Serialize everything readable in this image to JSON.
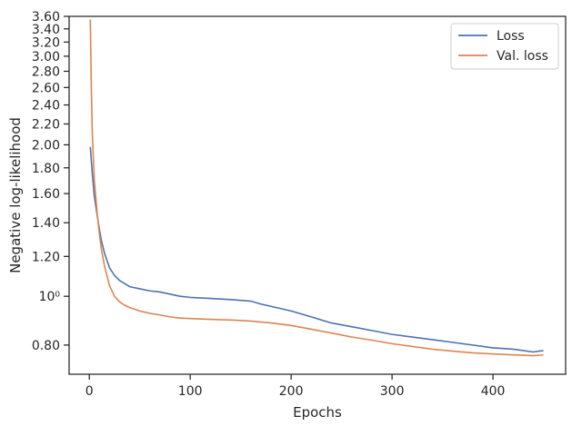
{
  "chart_data": {
    "type": "line",
    "xlabel": "Epochs",
    "ylabel": "Negative log-likelihood",
    "xlim": [
      -20,
      472
    ],
    "ylim": [
      0.7,
      3.6
    ],
    "y_scale": "log",
    "grid": false,
    "legend_placement": "top-right",
    "x_ticks": [
      0,
      100,
      200,
      300,
      400
    ],
    "x_tick_labels": [
      "0",
      "100",
      "200",
      "300",
      "400"
    ],
    "y_ticks": [
      0.8,
      1.0,
      1.2,
      1.4,
      1.6,
      1.8,
      2.0,
      2.2,
      2.4,
      2.6,
      2.8,
      3.0,
      3.2,
      3.4,
      3.6
    ],
    "y_tick_labels": [
      "0.80",
      "10⁰",
      "1.20",
      "1.40",
      "1.60",
      "1.80",
      "2.00",
      "2.20",
      "2.40",
      "2.60",
      "2.80",
      "3.00",
      "3.20",
      "3.40",
      "3.60"
    ],
    "series": [
      {
        "name": "Loss",
        "color": "#4c72b0",
        "x": [
          1,
          3,
          5,
          8,
          10,
          12,
          15,
          18,
          20,
          25,
          30,
          35,
          40,
          50,
          60,
          70,
          80,
          90,
          100,
          120,
          140,
          160,
          170,
          180,
          200,
          220,
          240,
          260,
          280,
          300,
          320,
          340,
          360,
          380,
          400,
          420,
          440,
          450
        ],
        "y": [
          1.98,
          1.75,
          1.58,
          1.44,
          1.36,
          1.29,
          1.22,
          1.17,
          1.14,
          1.1,
          1.075,
          1.06,
          1.045,
          1.035,
          1.025,
          1.02,
          1.01,
          1.0,
          0.995,
          0.99,
          0.985,
          0.978,
          0.965,
          0.955,
          0.935,
          0.91,
          0.885,
          0.87,
          0.855,
          0.84,
          0.83,
          0.82,
          0.81,
          0.8,
          0.79,
          0.785,
          0.775,
          0.78
        ]
      },
      {
        "name": "Val. loss",
        "color": "#dd8452",
        "x": [
          1,
          2,
          3,
          5,
          8,
          10,
          12,
          15,
          18,
          20,
          25,
          30,
          35,
          40,
          50,
          60,
          70,
          80,
          90,
          100,
          120,
          140,
          160,
          180,
          200,
          220,
          240,
          260,
          280,
          300,
          320,
          340,
          360,
          380,
          400,
          420,
          440,
          450
        ],
        "y": [
          3.55,
          2.6,
          2.1,
          1.7,
          1.45,
          1.33,
          1.24,
          1.15,
          1.09,
          1.05,
          1.0,
          0.975,
          0.96,
          0.95,
          0.935,
          0.925,
          0.918,
          0.91,
          0.905,
          0.903,
          0.9,
          0.897,
          0.893,
          0.885,
          0.875,
          0.86,
          0.845,
          0.83,
          0.818,
          0.805,
          0.795,
          0.785,
          0.778,
          0.772,
          0.768,
          0.765,
          0.762,
          0.765
        ]
      }
    ]
  }
}
